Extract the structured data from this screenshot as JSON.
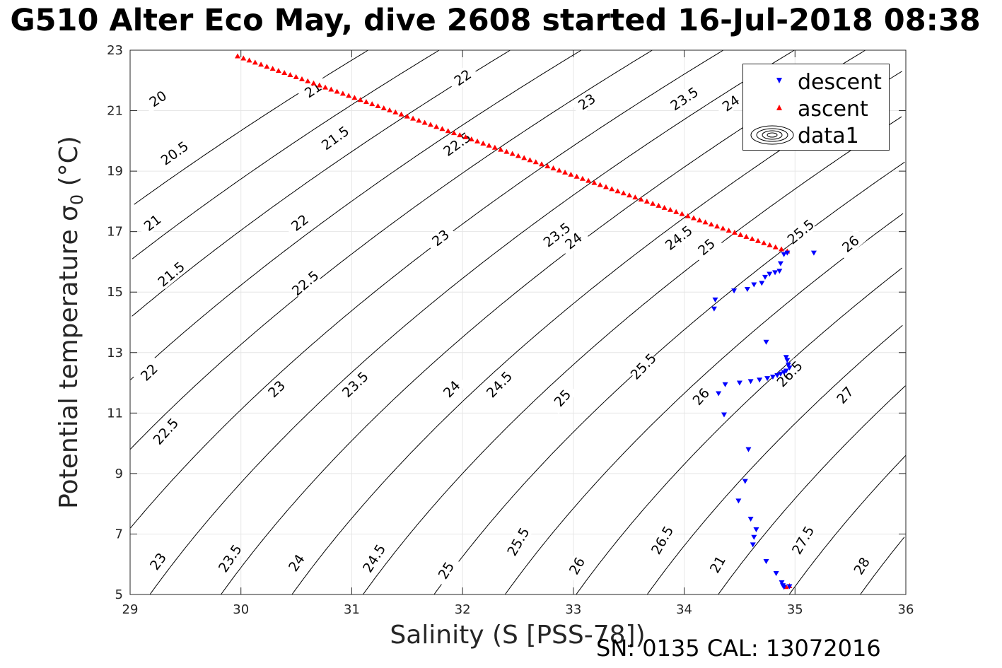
{
  "title": "G510 Alter Eco May, dive 2608 started 16-Jul-2018 08:38",
  "footer": "SN: 0135  CAL: 13072016",
  "colors": {
    "descent": "#0000ff",
    "ascent": "#ff0000",
    "contour": "#000000",
    "grid": "#e6e6e6",
    "axis": "#262626"
  },
  "chart_data": {
    "type": "scatter",
    "xlabel": "Salinity (S [PSS-78])",
    "ylabel_main": "Potential temperature σ",
    "ylabel_sub": "0",
    "ylabel_unit": " (°C)",
    "xlim": [
      29,
      36
    ],
    "ylim": [
      5,
      23
    ],
    "xticks": [
      "29",
      "30",
      "31",
      "32",
      "33",
      "34",
      "35",
      "36"
    ],
    "yticks": [
      "5",
      "7",
      "9",
      "11",
      "13",
      "15",
      "17",
      "19",
      "21",
      "23"
    ],
    "grid": true,
    "legend_position": "top-right",
    "series": [
      {
        "name": "descent",
        "marker": "triangle-down",
        "points": [
          [
            34.27,
            14.45
          ],
          [
            34.28,
            14.75
          ],
          [
            34.45,
            15.05
          ],
          [
            34.57,
            15.1
          ],
          [
            34.63,
            15.25
          ],
          [
            34.7,
            15.3
          ],
          [
            34.73,
            15.5
          ],
          [
            34.77,
            15.6
          ],
          [
            34.82,
            15.65
          ],
          [
            34.86,
            15.7
          ],
          [
            34.87,
            15.95
          ],
          [
            34.9,
            16.25
          ],
          [
            34.93,
            16.3
          ],
          [
            35.17,
            16.3
          ],
          [
            34.74,
            13.35
          ],
          [
            34.92,
            12.85
          ],
          [
            34.93,
            12.75
          ],
          [
            34.94,
            12.6
          ],
          [
            34.95,
            12.5
          ],
          [
            34.92,
            12.4
          ],
          [
            34.9,
            12.35
          ],
          [
            34.87,
            12.3
          ],
          [
            34.84,
            12.25
          ],
          [
            34.8,
            12.2
          ],
          [
            34.75,
            12.15
          ],
          [
            34.68,
            12.1
          ],
          [
            34.6,
            12.05
          ],
          [
            34.5,
            12.0
          ],
          [
            34.37,
            11.95
          ],
          [
            34.31,
            11.65
          ],
          [
            34.36,
            10.95
          ],
          [
            34.58,
            9.8
          ],
          [
            34.55,
            8.75
          ],
          [
            34.49,
            8.1
          ],
          [
            34.6,
            7.5
          ],
          [
            34.65,
            7.15
          ],
          [
            34.63,
            6.9
          ],
          [
            34.62,
            6.65
          ],
          [
            34.74,
            6.1
          ],
          [
            34.83,
            5.7
          ],
          [
            34.88,
            5.4
          ],
          [
            34.89,
            5.3
          ],
          [
            34.9,
            5.25
          ],
          [
            34.95,
            5.27
          ]
        ]
      },
      {
        "name": "ascent",
        "marker": "triangle-up",
        "from": [
          29.97,
          22.8
        ],
        "to": [
          34.93,
          16.35
        ],
        "count": 95,
        "extra_points": [
          [
            34.92,
            5.25
          ],
          [
            34.95,
            5.28
          ]
        ]
      },
      {
        "name": "data1",
        "marker": "contour",
        "contour_levels": [
          20,
          20.5,
          21,
          21.5,
          22,
          22.5,
          23,
          23.5,
          24,
          24.5,
          25,
          25.5,
          26,
          26.5,
          27,
          27.5,
          28
        ]
      }
    ],
    "contour_labels": [
      {
        "text": "20",
        "s": 29.25,
        "t": 21.4,
        "angle": -34
      },
      {
        "text": "20.5",
        "s": 29.4,
        "t": 19.6,
        "angle": -36
      },
      {
        "text": "21",
        "s": 30.65,
        "t": 21.7,
        "angle": -34
      },
      {
        "text": "21",
        "s": 29.2,
        "t": 17.3,
        "angle": -38
      },
      {
        "text": "21.5",
        "s": 30.85,
        "t": 20.1,
        "angle": -36
      },
      {
        "text": "21.5",
        "s": 29.37,
        "t": 15.6,
        "angle": -40
      },
      {
        "text": "22",
        "s": 32.0,
        "t": 22.1,
        "angle": -34
      },
      {
        "text": "22",
        "s": 30.53,
        "t": 17.3,
        "angle": -38
      },
      {
        "text": "22",
        "s": 29.17,
        "t": 12.35,
        "angle": -44
      },
      {
        "text": "22.5",
        "s": 31.95,
        "t": 19.9,
        "angle": -36
      },
      {
        "text": "22.5",
        "s": 30.58,
        "t": 15.3,
        "angle": -40
      },
      {
        "text": "22.5",
        "s": 29.32,
        "t": 10.4,
        "angle": -48
      },
      {
        "text": "23",
        "s": 33.12,
        "t": 21.3,
        "angle": -34
      },
      {
        "text": "23",
        "s": 31.8,
        "t": 16.8,
        "angle": -38
      },
      {
        "text": "23",
        "s": 30.32,
        "t": 11.8,
        "angle": -44
      },
      {
        "text": "23",
        "s": 29.25,
        "t": 6.1,
        "angle": -54
      },
      {
        "text": "23.5",
        "s": 34.0,
        "t": 21.4,
        "angle": -34
      },
      {
        "text": "23.5",
        "s": 32.85,
        "t": 16.9,
        "angle": -38
      },
      {
        "text": "23.5",
        "s": 31.03,
        "t": 11.95,
        "angle": -44
      },
      {
        "text": "23.5",
        "s": 29.9,
        "t": 6.2,
        "angle": -56
      },
      {
        "text": "24",
        "s": 34.42,
        "t": 21.25,
        "angle": -34
      },
      {
        "text": "24",
        "s": 33.0,
        "t": 16.7,
        "angle": -38
      },
      {
        "text": "24",
        "s": 31.9,
        "t": 11.8,
        "angle": -46
      },
      {
        "text": "24",
        "s": 30.5,
        "t": 6.05,
        "angle": -56
      },
      {
        "text": "24.5",
        "s": 33.95,
        "t": 16.8,
        "angle": -38
      },
      {
        "text": "24.5",
        "s": 32.33,
        "t": 11.95,
        "angle": -46
      },
      {
        "text": "24.5",
        "s": 31.2,
        "t": 6.2,
        "angle": -58
      },
      {
        "text": "25",
        "s": 34.2,
        "t": 16.5,
        "angle": -40
      },
      {
        "text": "25",
        "s": 32.9,
        "t": 11.5,
        "angle": -48
      },
      {
        "text": "25",
        "s": 31.85,
        "t": 5.8,
        "angle": -58
      },
      {
        "text": "25.5",
        "s": 35.05,
        "t": 17.0,
        "angle": -40
      },
      {
        "text": "25.5",
        "s": 33.63,
        "t": 12.55,
        "angle": -46
      },
      {
        "text": "25.5",
        "s": 32.5,
        "t": 6.75,
        "angle": -60
      },
      {
        "text": "26",
        "s": 35.5,
        "t": 16.6,
        "angle": -40
      },
      {
        "text": "26",
        "s": 34.15,
        "t": 11.55,
        "angle": -48
      },
      {
        "text": "26",
        "s": 33.03,
        "t": 5.95,
        "angle": -60
      },
      {
        "text": "26.5",
        "s": 34.95,
        "t": 12.3,
        "angle": -46
      },
      {
        "text": "26.5",
        "s": 33.8,
        "t": 6.8,
        "angle": -60
      },
      {
        "text": "27",
        "s": 35.45,
        "t": 11.6,
        "angle": -48
      },
      {
        "text": "21",
        "s": 34.3,
        "t": 6.0,
        "angle": -60
      },
      {
        "text": "27.5",
        "s": 35.07,
        "t": 6.8,
        "angle": -60
      },
      {
        "text": "28",
        "s": 35.6,
        "t": 5.95,
        "angle": -58
      }
    ]
  }
}
